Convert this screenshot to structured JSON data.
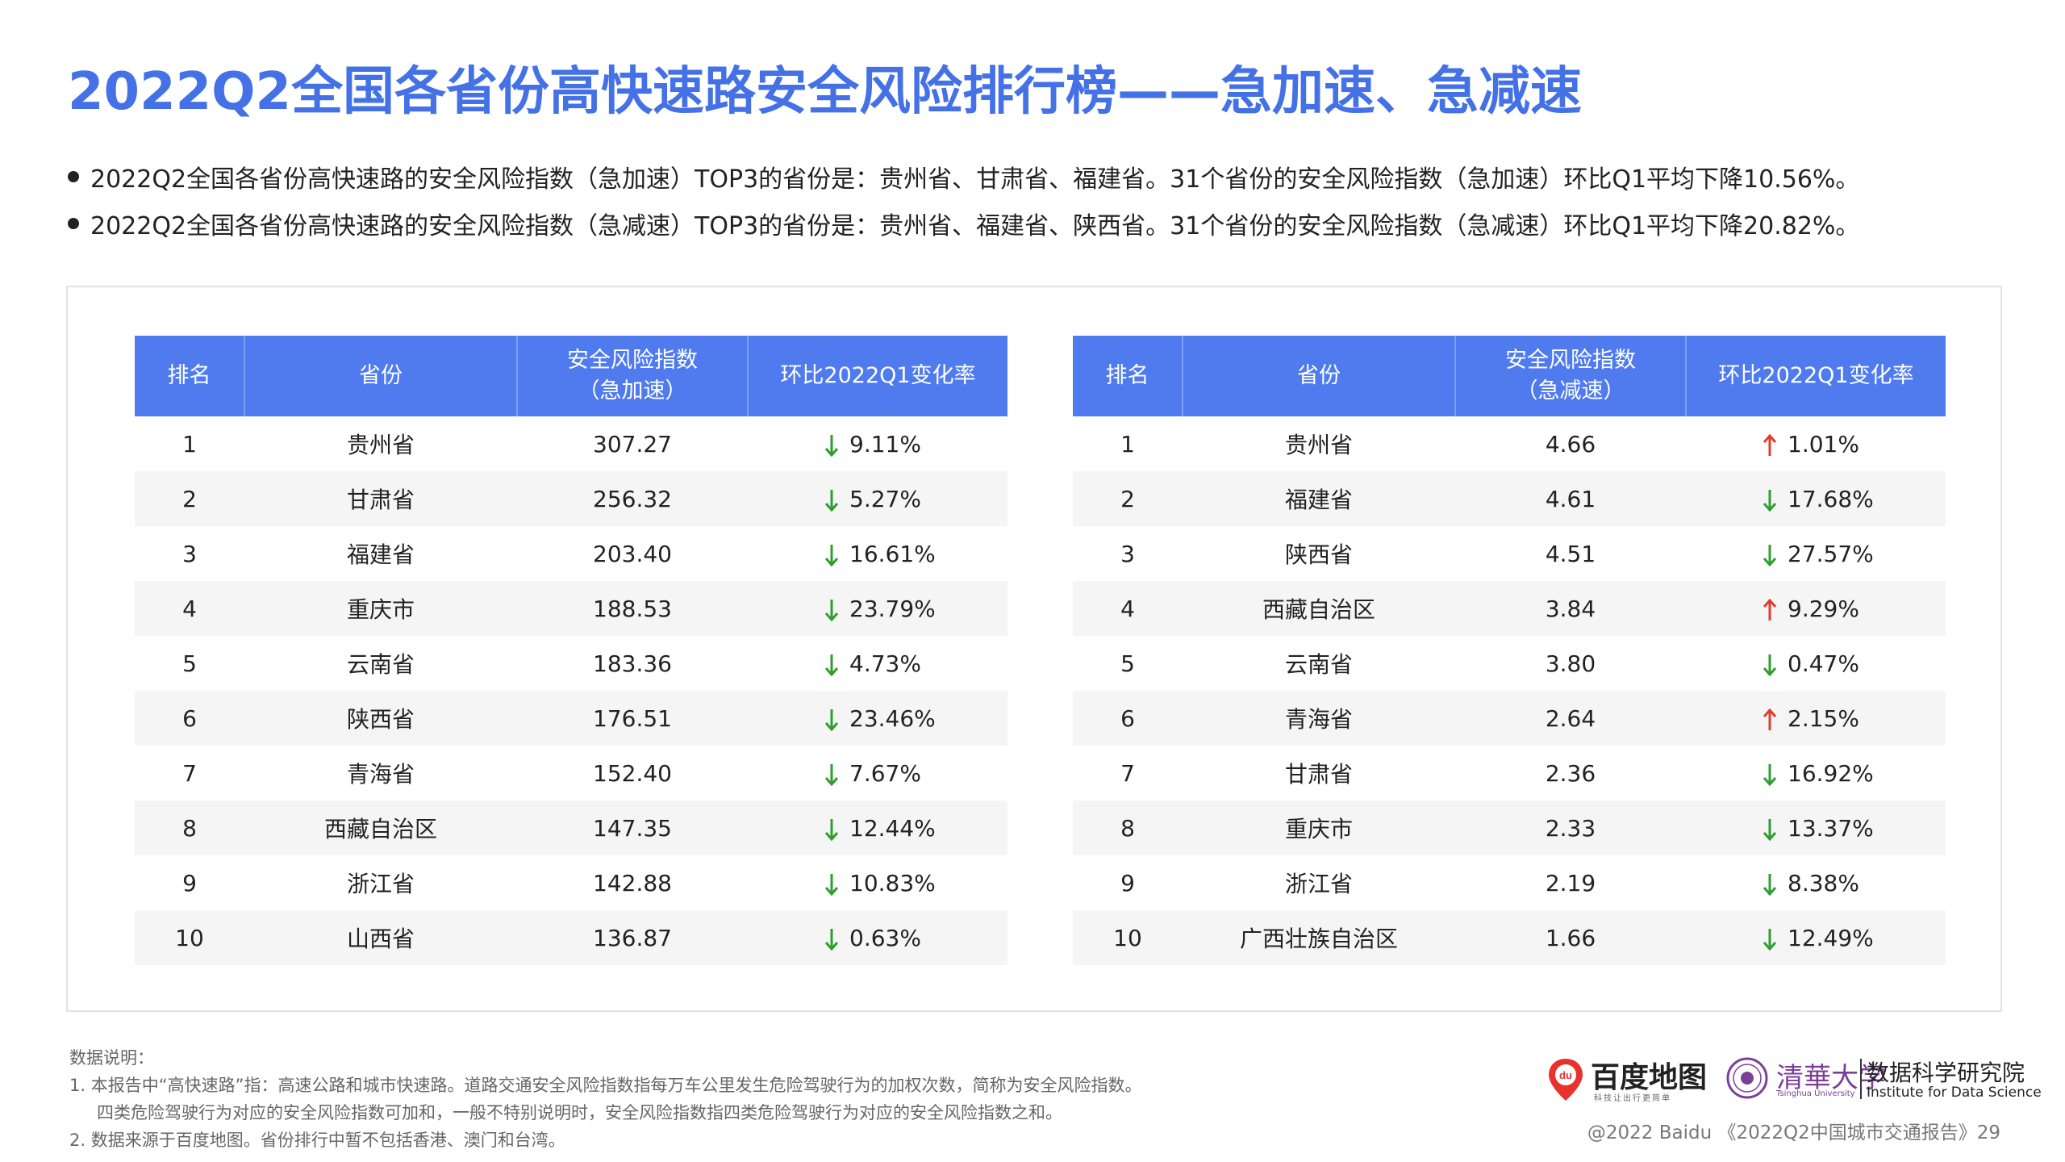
{
  "title": "2022Q2全国各省份高快速路安全风险排行榜——急加速、急减速",
  "bullets": [
    "2022Q2全国各省份高快速路的安全风险指数（急加速）TOP3的省份是：贵州省、甘肃省、福建省。31个省份的安全风险指数（急加速）环比Q1平均下降10.56%。",
    "2022Q2全国各省份高快速路的安全风险指数（急减速）TOP3的省份是：贵州省、福建省、陕西省。31个省份的安全风险指数（急减速）环比Q1平均下降20.82%。"
  ],
  "tables": {
    "accel": {
      "headers": {
        "rank": "排名",
        "province": "省份",
        "index_line1": "安全风险指数",
        "index_line2": "（急加速）",
        "change": "环比2022Q1变化率"
      },
      "rows": [
        {
          "rank": "1",
          "province": "贵州省",
          "index": "307.27",
          "direction": "down",
          "change": "9.11%"
        },
        {
          "rank": "2",
          "province": "甘肃省",
          "index": "256.32",
          "direction": "down",
          "change": "5.27%"
        },
        {
          "rank": "3",
          "province": "福建省",
          "index": "203.40",
          "direction": "down",
          "change": "16.61%"
        },
        {
          "rank": "4",
          "province": "重庆市",
          "index": "188.53",
          "direction": "down",
          "change": "23.79%"
        },
        {
          "rank": "5",
          "province": "云南省",
          "index": "183.36",
          "direction": "down",
          "change": "4.73%"
        },
        {
          "rank": "6",
          "province": "陕西省",
          "index": "176.51",
          "direction": "down",
          "change": "23.46%"
        },
        {
          "rank": "7",
          "province": "青海省",
          "index": "152.40",
          "direction": "down",
          "change": "7.67%"
        },
        {
          "rank": "8",
          "province": "西藏自治区",
          "index": "147.35",
          "direction": "down",
          "change": "12.44%"
        },
        {
          "rank": "9",
          "province": "浙江省",
          "index": "142.88",
          "direction": "down",
          "change": "10.83%"
        },
        {
          "rank": "10",
          "province": "山西省",
          "index": "136.87",
          "direction": "down",
          "change": "0.63%"
        }
      ]
    },
    "decel": {
      "headers": {
        "rank": "排名",
        "province": "省份",
        "index_line1": "安全风险指数",
        "index_line2": "（急减速）",
        "change": "环比2022Q1变化率"
      },
      "rows": [
        {
          "rank": "1",
          "province": "贵州省",
          "index": "4.66",
          "direction": "up",
          "change": "1.01%"
        },
        {
          "rank": "2",
          "province": "福建省",
          "index": "4.61",
          "direction": "down",
          "change": "17.68%"
        },
        {
          "rank": "3",
          "province": "陕西省",
          "index": "4.51",
          "direction": "down",
          "change": "27.57%"
        },
        {
          "rank": "4",
          "province": "西藏自治区",
          "index": "3.84",
          "direction": "up",
          "change": "9.29%"
        },
        {
          "rank": "5",
          "province": "云南省",
          "index": "3.80",
          "direction": "down",
          "change": "0.47%"
        },
        {
          "rank": "6",
          "province": "青海省",
          "index": "2.64",
          "direction": "up",
          "change": "2.15%"
        },
        {
          "rank": "7",
          "province": "甘肃省",
          "index": "2.36",
          "direction": "down",
          "change": "16.92%"
        },
        {
          "rank": "8",
          "province": "重庆市",
          "index": "2.33",
          "direction": "down",
          "change": "13.37%"
        },
        {
          "rank": "9",
          "province": "浙江省",
          "index": "2.19",
          "direction": "down",
          "change": "8.38%"
        },
        {
          "rank": "10",
          "province": "广西壮族自治区",
          "index": "1.66",
          "direction": "down",
          "change": "12.49%"
        }
      ]
    }
  },
  "colors": {
    "title": "#4472e6",
    "header_bg": "#4f7bee",
    "arrow_down": "#2e9e2e",
    "arrow_up": "#e23b2e",
    "alt_row": "#f5f5f5"
  },
  "notes": {
    "heading": "数据说明：",
    "line1": "1.   本报告中“高快速路”指：高速公路和城市快速路。道路交通安全风险指数指每万车公里发生危险驾驶行为的加权次数，简称为安全风险指数。",
    "line1b": "四类危险驾驶行为对应的安全风险指数可加和，一般不特别说明时，安全风险指数指四类危险驾驶行为对应的安全风险指数之和。",
    "line2": "2.   数据来源于百度地图。省份排行中暂不包括香港、澳门和台湾。"
  },
  "logos": {
    "baidu_pin_text": "du",
    "baidu_name": "百度地图",
    "baidu_slogan": "科技让出行更简单",
    "tsinghua_cn": "清華大学",
    "tsinghua_en": "Tsinghua University",
    "ids_cn": "数据科学研究院",
    "ids_en": "Institute for Data Science"
  },
  "footer": "@2022 Baidu 《2022Q2中国城市交通报告》29"
}
